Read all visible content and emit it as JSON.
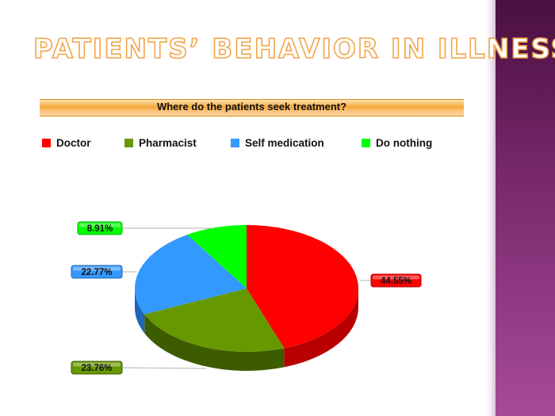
{
  "slide": {
    "title": "PATIENTS’ BEHAVIOR IN ILLNESS"
  },
  "colors": {
    "title_outline": "#f1a64a",
    "header_band": "#f6a93a",
    "side_panel": "#7a2a6e"
  },
  "chart_data": {
    "type": "pie",
    "title": "Where do the patients seek treatment?",
    "legend_position": "top",
    "three_d": true,
    "categories": [
      "Doctor",
      "Pharmacist",
      "Self medication",
      "Do nothing"
    ],
    "values": [
      44.55,
      23.76,
      22.77,
      8.91
    ],
    "value_labels": [
      "44.55%",
      "23.76%",
      "22.77%",
      "8.91%"
    ],
    "colors": [
      "#ff0000",
      "#669900",
      "#3399ff",
      "#00ff00"
    ],
    "side_colors": [
      "#b80000",
      "#3d5c00",
      "#1f66b3",
      "#00b300"
    ]
  }
}
